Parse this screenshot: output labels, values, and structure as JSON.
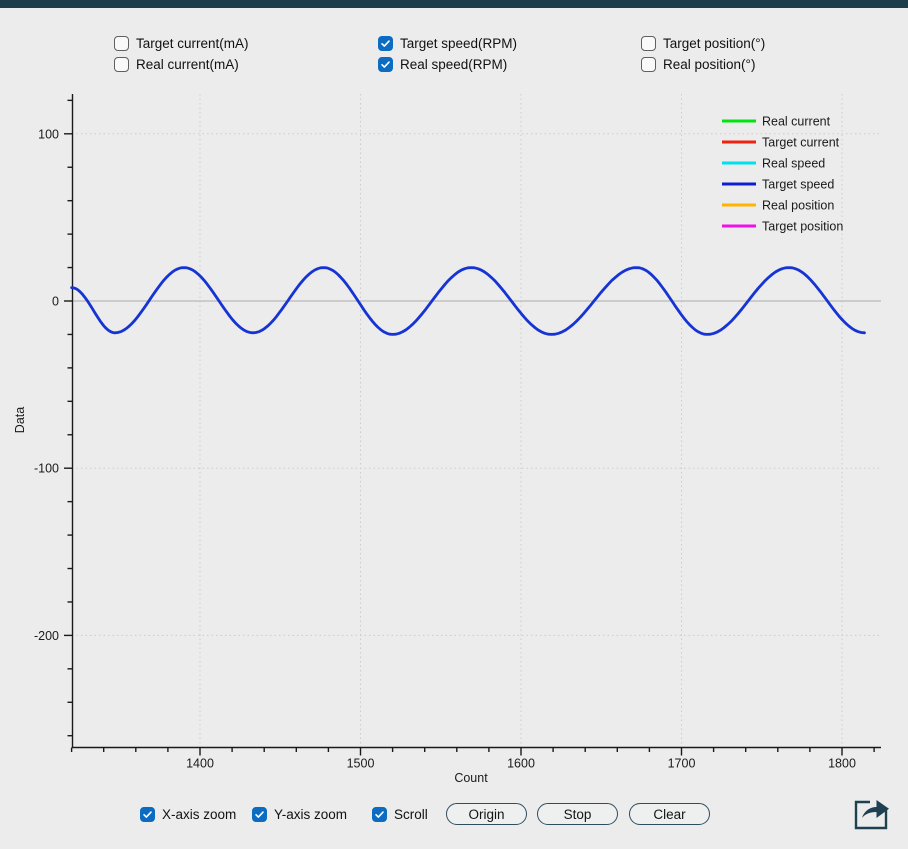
{
  "titlebar": {
    "color": "#1d3d4b"
  },
  "series_toggles": {
    "items": [
      {
        "label": "Target current(mA)",
        "checked": false
      },
      {
        "label": "Target speed(RPM)",
        "checked": true
      },
      {
        "label": "Target position(°)",
        "checked": false
      },
      {
        "label": "Real current(mA)",
        "checked": false
      },
      {
        "label": "Real speed(RPM)",
        "checked": true
      },
      {
        "label": "Real position(°)",
        "checked": false
      }
    ]
  },
  "bottom_bar": {
    "toggles": [
      {
        "label": "X-axis zoom",
        "checked": true
      },
      {
        "label": "Y-axis zoom",
        "checked": true
      },
      {
        "label": "Scroll",
        "checked": true
      }
    ],
    "buttons": [
      {
        "label": "Origin"
      },
      {
        "label": "Stop"
      },
      {
        "label": "Clear"
      }
    ],
    "icons": {
      "export": "share-arrow-icon"
    }
  },
  "colors": {
    "accent_checkbox": "#0b6cc1",
    "titlebar": "#1d3d4b",
    "button_border": "#2e4e5e",
    "curve": "#1633d4",
    "grid_dotted": "#cccccc",
    "zero_line": "#b9b9b9",
    "axis": "#1a1a1a"
  },
  "chart_data": {
    "type": "line",
    "title": "",
    "xlabel": "Count",
    "ylabel": "Data",
    "x_ticks": [
      1400,
      1500,
      1600,
      1700,
      1800
    ],
    "y_ticks": [
      100,
      0,
      -100,
      -200
    ],
    "x_range": [
      1320,
      1824
    ],
    "y_range": [
      -267,
      124
    ],
    "x_minor_step": 20,
    "y_minor_step": 20,
    "grid": "dotted gridlines at major ticks; solid light line at y=0",
    "legend_position": "top-right, no frame",
    "legend": [
      {
        "label": "Real current",
        "color": "#00e411"
      },
      {
        "label": "Target current",
        "color": "#ee2211"
      },
      {
        "label": "Real speed",
        "color": "#00e0ee"
      },
      {
        "label": "Target speed",
        "color": "#0b1fd0"
      },
      {
        "label": "Real position",
        "color": "#ffb400"
      },
      {
        "label": "Target position",
        "color": "#f011e8"
      }
    ],
    "series": [
      {
        "name": "Target speed",
        "color": "#1633d4",
        "shape": "smooth sine-like oscillation, peaks ~+20 RPM, troughs ~-20 RPM, period ~95 counts",
        "keypoints": [
          [
            1320,
            8
          ],
          [
            1347,
            -19
          ],
          [
            1390,
            20
          ],
          [
            1433,
            -19
          ],
          [
            1477,
            20
          ],
          [
            1520,
            -20
          ],
          [
            1569,
            20
          ],
          [
            1619,
            -20
          ],
          [
            1672,
            20
          ],
          [
            1716,
            -20
          ],
          [
            1767,
            20
          ],
          [
            1814,
            -19
          ]
        ]
      }
    ]
  }
}
